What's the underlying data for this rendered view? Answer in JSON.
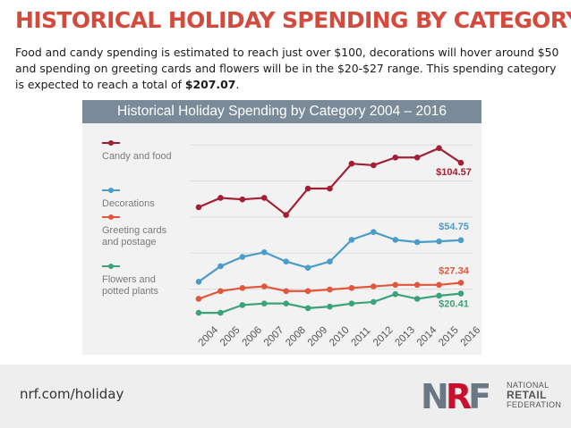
{
  "header": {
    "title": "HISTORICAL HOLIDAY SPENDING BY CATEGORY",
    "intro": "Food and candy spending is estimated to reach just over $100, decorations will hover around $50 and spending on greeting cards and flowers will be in the $20-$27 range. This spending category is expected to reach a total of ",
    "total": "$207.07",
    "intro_end": "."
  },
  "chart_data": {
    "type": "line",
    "title": "Historical Holiday Spending by Category 2004 – 2016",
    "categories": [
      "2004",
      "2005",
      "2006",
      "2007",
      "2008",
      "2009",
      "2010",
      "2011",
      "2012",
      "2013",
      "2014",
      "2015",
      "2016"
    ],
    "ylim": [
      0,
      130
    ],
    "grid": true,
    "legend_position": "left",
    "series": [
      {
        "name": "Candy and food",
        "color": "#a31f34",
        "end_label": "$104.57",
        "values": [
          76,
          82,
          81,
          82,
          71,
          88,
          88,
          104,
          103,
          108,
          108,
          114,
          104.57
        ]
      },
      {
        "name": "Decorations",
        "color": "#4a9cc9",
        "end_label": "$54.75",
        "values": [
          28,
          38,
          44,
          47,
          41,
          37,
          41,
          55,
          60,
          55,
          53.5,
          54,
          54.75
        ]
      },
      {
        "name": "Greeting cards and postage",
        "color": "#e2563b",
        "end_label": "$27.34",
        "values": [
          17,
          22,
          24,
          25,
          22,
          22,
          23,
          24,
          25,
          26,
          26,
          26,
          27.34
        ]
      },
      {
        "name": "Flowers and potted plants",
        "color": "#3aa37a",
        "end_label": "$20.41",
        "values": [
          8,
          8,
          13,
          14,
          14,
          11,
          12,
          14,
          15,
          20,
          17,
          19,
          20.41
        ]
      }
    ]
  },
  "footer": {
    "url": "nrf.com/holiday",
    "logo_mark": "NRF",
    "logo_line1": "NATIONAL",
    "logo_line2": "RETAIL",
    "logo_line3": "FEDERATION"
  }
}
